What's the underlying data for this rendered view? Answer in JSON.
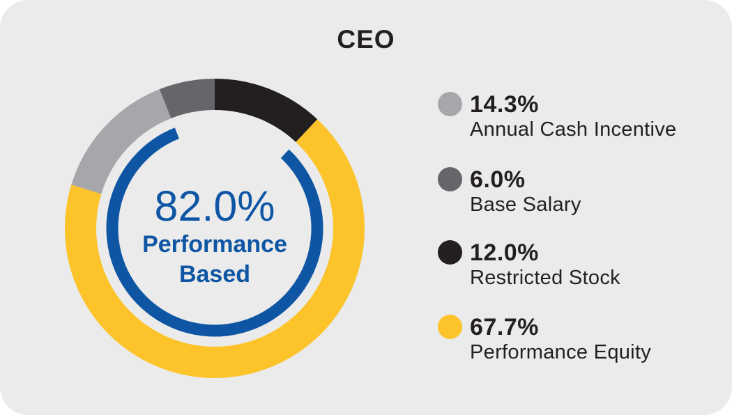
{
  "title": "CEO",
  "colors": {
    "page_background": "#FFFFFF",
    "card_background": "#EBEBEB",
    "accent_blue": "#0E56A4",
    "text_dark": "#231F20",
    "yellow": "#FCC42A",
    "gray_light": "#A5A7AA",
    "gray_dark": "#656669",
    "black": "#231F20"
  },
  "chart_data": {
    "type": "donut",
    "title": "CEO",
    "units": "%",
    "direction": "clockwise",
    "start_angle_deg_from_top": 0,
    "segments": [
      {
        "label": "Restricted Stock",
        "value": 12.0,
        "color": "#231F20"
      },
      {
        "label": "Performance Equity",
        "value": 67.7,
        "color": "#FCC42A"
      },
      {
        "label": "Annual Cash Incentive",
        "value": 14.3,
        "color": "#A5A7AA"
      },
      {
        "label": "Base Salary",
        "value": 6.0,
        "color": "#656669"
      }
    ],
    "inner_arc": {
      "label": "Performance Based",
      "value": 82.0,
      "color": "#0E56A4",
      "start_deg": 43.2,
      "end_deg": 338.4
    },
    "geometry": {
      "outer_ring_radius": 192.5,
      "outer_ring_thickness": 45,
      "inner_arc_radius": 147,
      "inner_arc_thickness": 17
    }
  },
  "center": {
    "percent": "82.0%",
    "line1": "Performance",
    "line2": "Based"
  },
  "legend": {
    "items": [
      {
        "percent": "14.3%",
        "label": "Annual Cash Incentive",
        "color": "#A5A7AA"
      },
      {
        "percent": "6.0%",
        "label": "Base Salary",
        "color": "#656669"
      },
      {
        "percent": "12.0%",
        "label": "Restricted Stock",
        "color": "#231F20"
      },
      {
        "percent": "67.7%",
        "label": "Performance Equity",
        "color": "#FCC42A"
      }
    ]
  }
}
